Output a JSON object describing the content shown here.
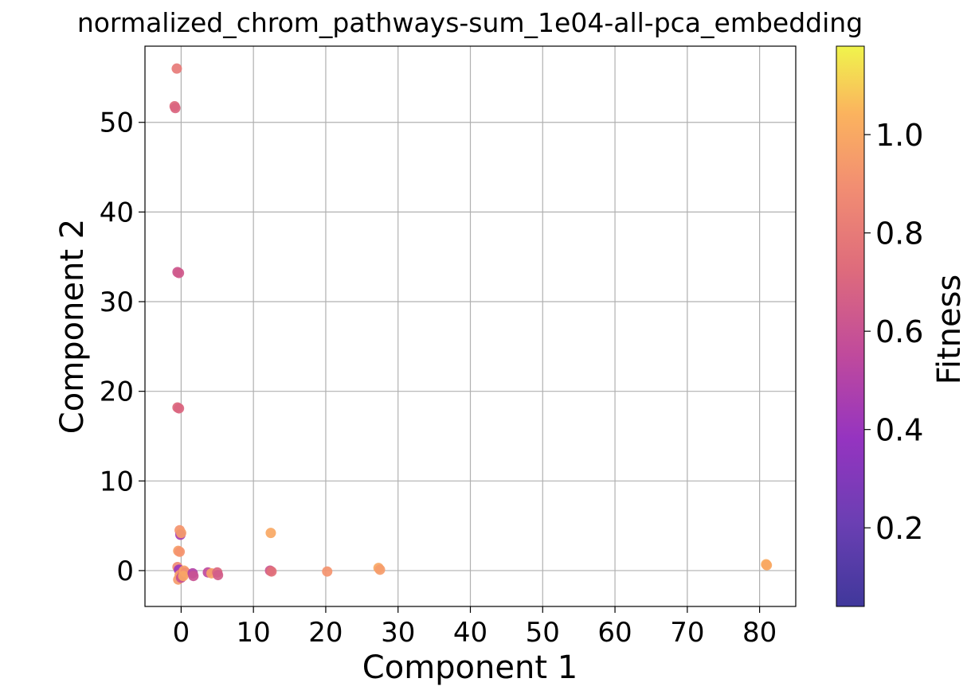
{
  "chart_data": {
    "type": "scatter",
    "title": "normalized_chrom_pathways-sum_1e04-all-pca_embedding",
    "xlabel": "Component 1",
    "ylabel": "Component 2",
    "xlim": [
      -5,
      85
    ],
    "ylim": [
      -4,
      58.5
    ],
    "xticks": [
      0,
      10,
      20,
      30,
      40,
      50,
      60,
      70,
      80
    ],
    "yticks": [
      0,
      10,
      20,
      30,
      40,
      50
    ],
    "grid": true,
    "colorbar": {
      "label": "Fitness",
      "colormap": "plasma",
      "range": [
        0.04,
        1.18
      ],
      "ticks": [
        0.2,
        0.4,
        0.6,
        0.8,
        1.0
      ],
      "tick_labels": [
        "0.2",
        "0.4",
        "0.6",
        "0.8",
        "1.0"
      ]
    },
    "points": [
      {
        "x": -0.6,
        "y": 56.0,
        "fitness": 0.8
      },
      {
        "x": -0.9,
        "y": 51.8,
        "fitness": 0.72
      },
      {
        "x": -0.8,
        "y": 51.6,
        "fitness": 0.7
      },
      {
        "x": -0.5,
        "y": 33.3,
        "fitness": 0.62
      },
      {
        "x": -0.3,
        "y": 33.2,
        "fitness": 0.64
      },
      {
        "x": -0.5,
        "y": 18.2,
        "fitness": 0.72
      },
      {
        "x": -0.3,
        "y": 18.1,
        "fitness": 0.7
      },
      {
        "x": -0.2,
        "y": 4.5,
        "fitness": 0.92
      },
      {
        "x": -0.1,
        "y": 4.0,
        "fitness": 0.45
      },
      {
        "x": 0.0,
        "y": 4.2,
        "fitness": 0.95
      },
      {
        "x": -0.4,
        "y": 2.2,
        "fitness": 0.96
      },
      {
        "x": -0.2,
        "y": 2.1,
        "fitness": 0.92
      },
      {
        "x": -0.5,
        "y": 0.4,
        "fitness": 0.88
      },
      {
        "x": -0.3,
        "y": 0.1,
        "fitness": 0.4
      },
      {
        "x": 0.1,
        "y": -0.2,
        "fitness": 0.55
      },
      {
        "x": -0.2,
        "y": -0.5,
        "fitness": 0.98
      },
      {
        "x": 0.2,
        "y": -0.3,
        "fitness": 0.85
      },
      {
        "x": -0.4,
        "y": -1.0,
        "fitness": 0.95
      },
      {
        "x": 0.0,
        "y": -0.8,
        "fitness": 0.6
      },
      {
        "x": 0.4,
        "y": 0.0,
        "fitness": 0.97
      },
      {
        "x": 0.6,
        "y": -0.2,
        "fitness": 0.9
      },
      {
        "x": 0.3,
        "y": -0.6,
        "fitness": 0.99
      },
      {
        "x": 1.6,
        "y": -0.3,
        "fitness": 0.5
      },
      {
        "x": 1.7,
        "y": -0.6,
        "fitness": 0.6
      },
      {
        "x": 3.7,
        "y": -0.2,
        "fitness": 0.55
      },
      {
        "x": 4.2,
        "y": -0.3,
        "fitness": 0.98
      },
      {
        "x": 5.0,
        "y": -0.2,
        "fitness": 0.7
      },
      {
        "x": 5.1,
        "y": -0.5,
        "fitness": 0.65
      },
      {
        "x": 12.4,
        "y": 4.2,
        "fitness": 1.0
      },
      {
        "x": 12.3,
        "y": 0.0,
        "fitness": 0.62
      },
      {
        "x": 12.5,
        "y": -0.1,
        "fitness": 0.75
      },
      {
        "x": 20.2,
        "y": -0.1,
        "fitness": 0.92
      },
      {
        "x": 27.3,
        "y": 0.3,
        "fitness": 1.0
      },
      {
        "x": 27.5,
        "y": 0.1,
        "fitness": 0.95
      },
      {
        "x": 80.9,
        "y": 0.7,
        "fitness": 1.02
      },
      {
        "x": 81.0,
        "y": 0.6,
        "fitness": 1.0
      }
    ]
  }
}
